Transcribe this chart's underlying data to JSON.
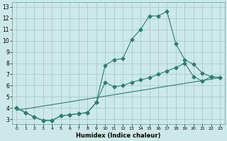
{
  "xlabel": "Humidex (Indice chaleur)",
  "background_color": "#cce8e8",
  "grid_color": "#aacccc",
  "line_color": "#2e7d6e",
  "xlim": [
    -0.5,
    23.5
  ],
  "ylim": [
    2.6,
    13.4
  ],
  "xticks": [
    0,
    1,
    2,
    3,
    4,
    5,
    6,
    7,
    8,
    9,
    10,
    11,
    12,
    13,
    14,
    15,
    16,
    17,
    18,
    19,
    20,
    21,
    22,
    23
  ],
  "yticks": [
    3,
    4,
    5,
    6,
    7,
    8,
    9,
    10,
    11,
    12,
    13
  ],
  "line1_x": [
    0,
    1,
    2,
    3,
    4,
    5,
    6,
    7,
    8,
    9,
    10,
    11,
    12,
    13,
    14,
    15,
    16,
    17,
    18,
    19,
    20,
    21,
    22,
    23
  ],
  "line1_y": [
    4.0,
    3.6,
    3.2,
    2.9,
    2.9,
    3.3,
    3.4,
    3.5,
    3.6,
    4.5,
    7.8,
    8.3,
    8.4,
    10.1,
    11.0,
    12.2,
    12.2,
    12.6,
    9.7,
    8.3,
    7.9,
    7.1,
    6.8,
    6.7
  ],
  "line2_x": [
    0,
    1,
    2,
    3,
    4,
    5,
    6,
    7,
    8,
    9,
    10,
    11,
    12,
    13,
    14,
    15,
    16,
    17,
    18,
    19,
    20,
    21,
    22,
    23
  ],
  "line2_y": [
    4.0,
    3.6,
    3.2,
    2.9,
    2.9,
    3.3,
    3.4,
    3.5,
    3.6,
    4.5,
    6.3,
    5.9,
    6.0,
    6.3,
    6.5,
    6.7,
    7.0,
    7.3,
    7.6,
    8.0,
    6.8,
    6.4,
    6.8,
    6.7
  ],
  "line3_x": [
    0,
    23
  ],
  "line3_y": [
    3.8,
    6.7
  ]
}
